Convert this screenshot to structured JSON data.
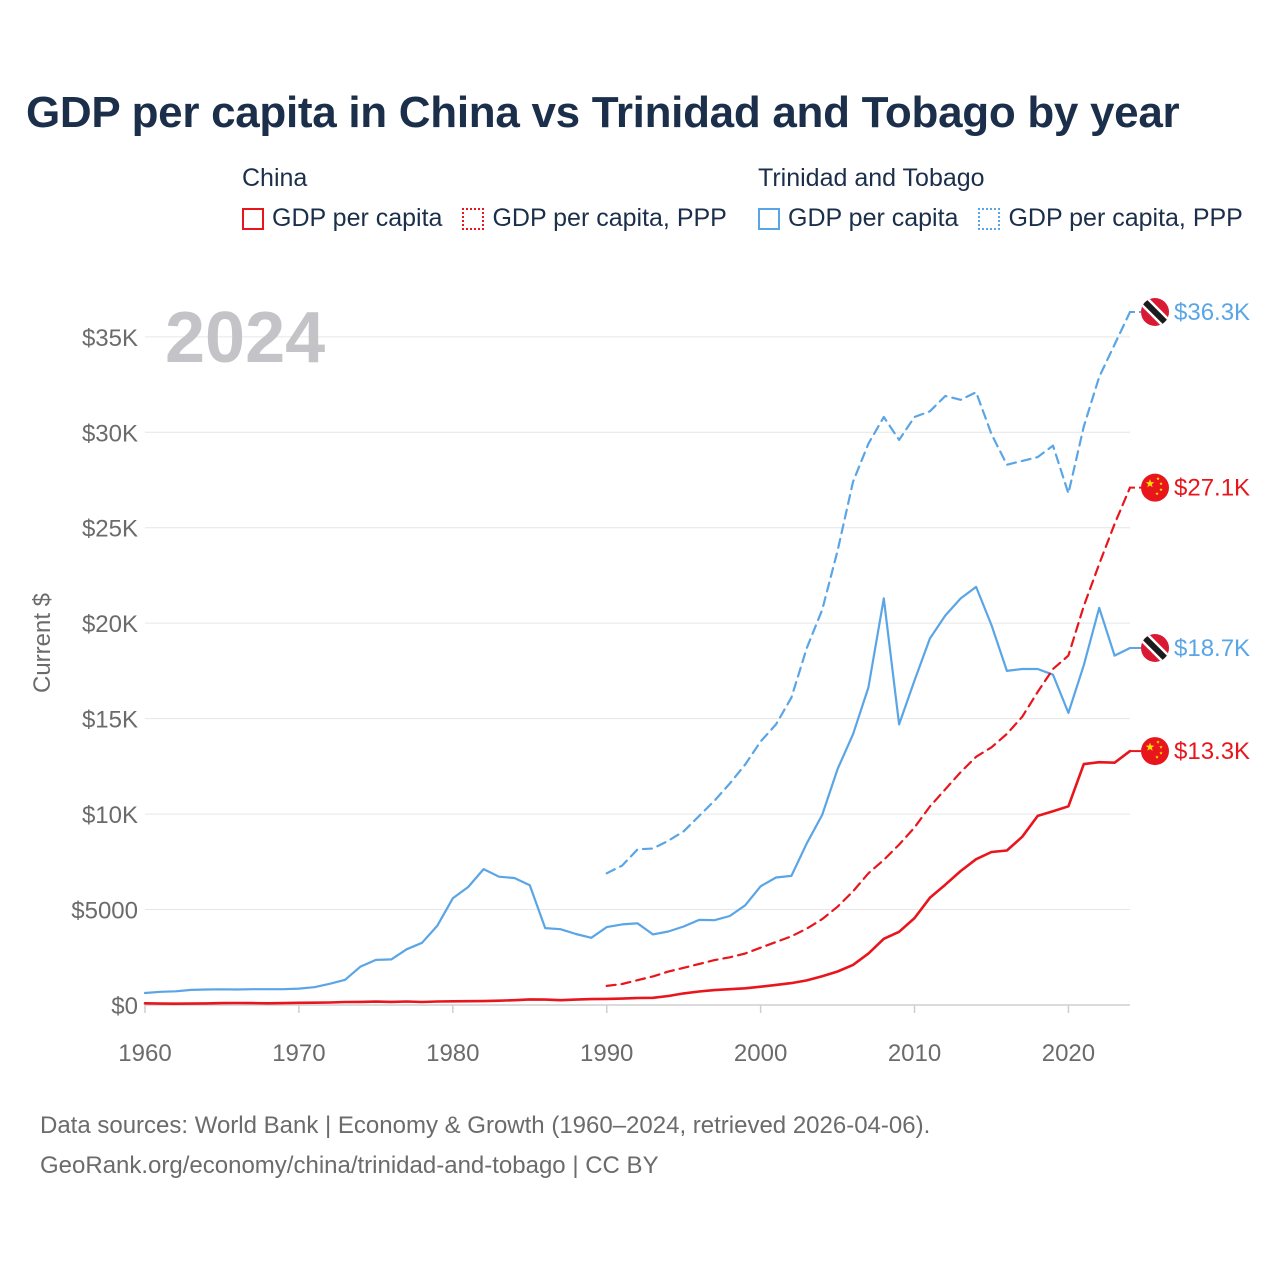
{
  "title": "GDP per capita in China vs Trinidad and Tobago by year",
  "legend": {
    "china": {
      "heading": "China",
      "solid": "GDP per capita",
      "dashed": "GDP per capita, PPP"
    },
    "tt": {
      "heading": "Trinidad and Tobago",
      "solid": "GDP per capita",
      "dashed": "GDP per capita, PPP"
    }
  },
  "year_label": "2024",
  "footer": {
    "line1": "Data sources: World Bank | Economy & Growth (1960–2024, retrieved 2026-04-06).",
    "line2": "GeoRank.org/economy/china/trinidad-and-tobago | CC BY"
  },
  "colors": {
    "china": "#e8161c",
    "tt": "#5aa5e6",
    "title": "#1b2f4b",
    "year": "#c3c3c8"
  },
  "chart_data": {
    "type": "line",
    "ylabel": "Current $",
    "xlabel": "",
    "xlim": [
      1960,
      2024
    ],
    "ylim": [
      0,
      36300
    ],
    "x_ticks": [
      1960,
      1970,
      1980,
      1990,
      2000,
      2010,
      2020
    ],
    "y_ticks": [
      {
        "value": 0,
        "label": "$0"
      },
      {
        "value": 5000,
        "label": "$5000"
      },
      {
        "value": 10000,
        "label": "$10K"
      },
      {
        "value": 15000,
        "label": "$15K"
      },
      {
        "value": 20000,
        "label": "$20K"
      },
      {
        "value": 25000,
        "label": "$25K"
      },
      {
        "value": 30000,
        "label": "$30K"
      },
      {
        "value": 35000,
        "label": "$35K"
      }
    ],
    "series": [
      {
        "name": "Trinidad and Tobago GDP per capita, PPP",
        "country": "tt",
        "dashed": true,
        "end_label": "$36.3K",
        "points": [
          [
            1990,
            6900
          ],
          [
            1991,
            7300
          ],
          [
            1992,
            8150
          ],
          [
            1993,
            8200
          ],
          [
            1994,
            8600
          ],
          [
            1995,
            9100
          ],
          [
            1996,
            9900
          ],
          [
            1997,
            10700
          ],
          [
            1998,
            11600
          ],
          [
            1999,
            12600
          ],
          [
            2000,
            13800
          ],
          [
            2001,
            14700
          ],
          [
            2002,
            16100
          ],
          [
            2003,
            18700
          ],
          [
            2004,
            20700
          ],
          [
            2005,
            23800
          ],
          [
            2006,
            27400
          ],
          [
            2007,
            29400
          ],
          [
            2008,
            30800
          ],
          [
            2009,
            29600
          ],
          [
            2010,
            30800
          ],
          [
            2011,
            31100
          ],
          [
            2012,
            31900
          ],
          [
            2013,
            31700
          ],
          [
            2014,
            32100
          ],
          [
            2015,
            29900
          ],
          [
            2016,
            28300
          ],
          [
            2017,
            28500
          ],
          [
            2018,
            28700
          ],
          [
            2019,
            29300
          ],
          [
            2020,
            26800
          ],
          [
            2021,
            30300
          ],
          [
            2022,
            32900
          ],
          [
            2023,
            34600
          ],
          [
            2024,
            36300
          ]
        ]
      },
      {
        "name": "Trinidad and Tobago GDP per capita",
        "country": "tt",
        "dashed": false,
        "end_label": "$18.7K",
        "points": [
          [
            1960,
            630
          ],
          [
            1961,
            690
          ],
          [
            1962,
            720
          ],
          [
            1963,
            790
          ],
          [
            1964,
            810
          ],
          [
            1965,
            820
          ],
          [
            1966,
            810
          ],
          [
            1967,
            830
          ],
          [
            1968,
            830
          ],
          [
            1969,
            830
          ],
          [
            1970,
            860
          ],
          [
            1971,
            930
          ],
          [
            1972,
            1110
          ],
          [
            1973,
            1320
          ],
          [
            1974,
            2010
          ],
          [
            1975,
            2360
          ],
          [
            1976,
            2390
          ],
          [
            1977,
            2920
          ],
          [
            1978,
            3260
          ],
          [
            1979,
            4160
          ],
          [
            1980,
            5590
          ],
          [
            1981,
            6180
          ],
          [
            1982,
            7120
          ],
          [
            1983,
            6720
          ],
          [
            1984,
            6650
          ],
          [
            1985,
            6270
          ],
          [
            1986,
            4030
          ],
          [
            1987,
            3970
          ],
          [
            1988,
            3720
          ],
          [
            1989,
            3520
          ],
          [
            1990,
            4080
          ],
          [
            1991,
            4220
          ],
          [
            1992,
            4280
          ],
          [
            1993,
            3700
          ],
          [
            1994,
            3850
          ],
          [
            1995,
            4110
          ],
          [
            1996,
            4460
          ],
          [
            1997,
            4440
          ],
          [
            1998,
            4660
          ],
          [
            1999,
            5220
          ],
          [
            2000,
            6220
          ],
          [
            2001,
            6680
          ],
          [
            2002,
            6760
          ],
          [
            2003,
            8470
          ],
          [
            2004,
            9960
          ],
          [
            2005,
            12360
          ],
          [
            2006,
            14180
          ],
          [
            2007,
            16630
          ],
          [
            2008,
            21300
          ],
          [
            2009,
            14700
          ],
          [
            2010,
            17000
          ],
          [
            2011,
            19200
          ],
          [
            2012,
            20400
          ],
          [
            2013,
            21300
          ],
          [
            2014,
            21900
          ],
          [
            2015,
            19900
          ],
          [
            2016,
            17500
          ],
          [
            2017,
            17600
          ],
          [
            2018,
            17600
          ],
          [
            2019,
            17300
          ],
          [
            2020,
            15300
          ],
          [
            2021,
            17800
          ],
          [
            2022,
            20800
          ],
          [
            2023,
            18300
          ],
          [
            2024,
            18700
          ]
        ]
      },
      {
        "name": "China GDP per capita, PPP",
        "country": "china",
        "dashed": true,
        "end_label": "$27.1K",
        "points": [
          [
            1990,
            1000
          ],
          [
            1991,
            1100
          ],
          [
            1992,
            1300
          ],
          [
            1993,
            1500
          ],
          [
            1994,
            1750
          ],
          [
            1995,
            1950
          ],
          [
            1996,
            2150
          ],
          [
            1997,
            2350
          ],
          [
            1998,
            2500
          ],
          [
            1999,
            2700
          ],
          [
            2000,
            3000
          ],
          [
            2001,
            3300
          ],
          [
            2002,
            3600
          ],
          [
            2003,
            4000
          ],
          [
            2004,
            4500
          ],
          [
            2005,
            5150
          ],
          [
            2006,
            5950
          ],
          [
            2007,
            6900
          ],
          [
            2008,
            7600
          ],
          [
            2009,
            8400
          ],
          [
            2010,
            9300
          ],
          [
            2011,
            10400
          ],
          [
            2012,
            11300
          ],
          [
            2013,
            12200
          ],
          [
            2014,
            13000
          ],
          [
            2015,
            13500
          ],
          [
            2016,
            14200
          ],
          [
            2017,
            15100
          ],
          [
            2018,
            16400
          ],
          [
            2019,
            17600
          ],
          [
            2020,
            18300
          ],
          [
            2021,
            20900
          ],
          [
            2022,
            23100
          ],
          [
            2023,
            25200
          ],
          [
            2024,
            27100
          ]
        ]
      },
      {
        "name": "China GDP per capita",
        "country": "china",
        "dashed": false,
        "end_label": "$13.3K",
        "points": [
          [
            1960,
            90
          ],
          [
            1961,
            75
          ],
          [
            1962,
            70
          ],
          [
            1963,
            74
          ],
          [
            1964,
            85
          ],
          [
            1965,
            98
          ],
          [
            1966,
            104
          ],
          [
            1967,
            97
          ],
          [
            1968,
            91
          ],
          [
            1969,
            100
          ],
          [
            1970,
            113
          ],
          [
            1971,
            119
          ],
          [
            1972,
            132
          ],
          [
            1973,
            157
          ],
          [
            1974,
            160
          ],
          [
            1975,
            178
          ],
          [
            1976,
            165
          ],
          [
            1977,
            185
          ],
          [
            1978,
            156
          ],
          [
            1979,
            183
          ],
          [
            1980,
            195
          ],
          [
            1981,
            197
          ],
          [
            1982,
            203
          ],
          [
            1983,
            225
          ],
          [
            1984,
            251
          ],
          [
            1985,
            294
          ],
          [
            1986,
            282
          ],
          [
            1987,
            252
          ],
          [
            1988,
            284
          ],
          [
            1989,
            311
          ],
          [
            1990,
            318
          ],
          [
            1991,
            333
          ],
          [
            1992,
            366
          ],
          [
            1993,
            377
          ],
          [
            1994,
            473
          ],
          [
            1995,
            610
          ],
          [
            1996,
            709
          ],
          [
            1997,
            782
          ],
          [
            1998,
            829
          ],
          [
            1999,
            873
          ],
          [
            2000,
            959
          ],
          [
            2001,
            1053
          ],
          [
            2002,
            1149
          ],
          [
            2003,
            1289
          ],
          [
            2004,
            1509
          ],
          [
            2005,
            1753
          ],
          [
            2006,
            2099
          ],
          [
            2007,
            2694
          ],
          [
            2008,
            3468
          ],
          [
            2009,
            3832
          ],
          [
            2010,
            4550
          ],
          [
            2011,
            5614
          ],
          [
            2012,
            6301
          ],
          [
            2013,
            7020
          ],
          [
            2014,
            7636
          ],
          [
            2015,
            8016
          ],
          [
            2016,
            8094
          ],
          [
            2017,
            8817
          ],
          [
            2018,
            9905
          ],
          [
            2019,
            10144
          ],
          [
            2020,
            10409
          ],
          [
            2021,
            12618
          ],
          [
            2022,
            12720
          ],
          [
            2023,
            12690
          ],
          [
            2024,
            13300
          ]
        ]
      }
    ]
  }
}
